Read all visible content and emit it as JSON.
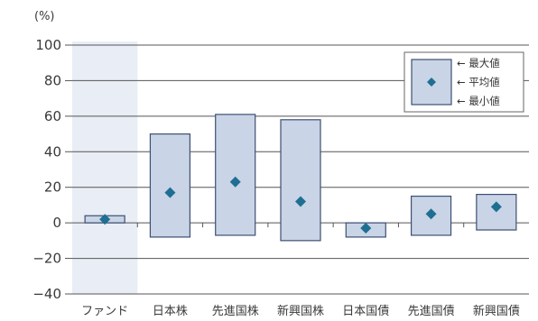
{
  "chart_data": {
    "type": "bar",
    "unit": "(%)",
    "yticks": [
      100,
      80,
      60,
      40,
      20,
      0,
      -20,
      -40
    ],
    "ylim": [
      -40,
      100
    ],
    "categories": [
      "ファンド",
      "日本株",
      "先進国株",
      "新興国株",
      "日本国債",
      "先進国債",
      "新興国債"
    ],
    "max": [
      4,
      50,
      61,
      58,
      0,
      15,
      16
    ],
    "avg": [
      2,
      17,
      23,
      12,
      -3,
      5,
      9
    ],
    "min": [
      0,
      -8,
      -7,
      -10,
      -8,
      -7,
      -4
    ],
    "highlight_category": "ファンド",
    "legend": [
      "← 最大値",
      "← 平均値",
      "← 最小値"
    ],
    "grid": "horizontal",
    "legend_position": "top-right"
  },
  "colors": {
    "box_fill": "#c9d4e6",
    "box_stroke": "#3d4f72",
    "marker": "#1e6f92",
    "highlight_bg": "#e9edf5",
    "grid": "#555555"
  }
}
